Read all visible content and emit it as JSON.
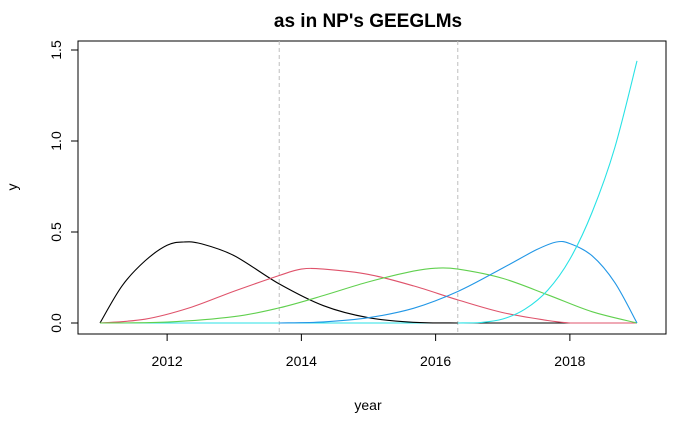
{
  "chart_data": {
    "type": "line",
    "title": "as in NP's GEEGLMs",
    "xlabel": "year",
    "ylabel": "y",
    "xlim": [
      2011.0,
      2019.0
    ],
    "ylim": [
      0.0,
      1.5
    ],
    "x_ticks": [
      2012,
      2014,
      2016,
      2018
    ],
    "x_tick_labels": [
      "2012",
      "2014",
      "2016",
      "2018"
    ],
    "y_ticks": [
      0.0,
      0.5,
      1.0,
      1.5
    ],
    "y_tick_labels": [
      "0.0",
      "0.5",
      "1.0",
      "1.5"
    ],
    "vlines": [
      2013.67,
      2016.33
    ],
    "vline_color": "#bebebe",
    "grid": false,
    "legend": "none",
    "series": [
      {
        "color": "#000000",
        "x": [
          2011.0,
          2011.33,
          2011.67,
          2012.0,
          2012.25,
          2012.5,
          2013.0,
          2013.67,
          2014.33,
          2015.0,
          2015.67,
          2016.33
        ],
        "y": [
          0.0,
          0.205,
          0.341,
          0.427,
          0.445,
          0.436,
          0.37,
          0.215,
          0.095,
          0.029,
          0.004,
          0.0
        ]
      },
      {
        "color": "#df536b",
        "x": [
          2011.0,
          2011.67,
          2012.33,
          2013.0,
          2013.67,
          2014.0,
          2014.33,
          2015.0,
          2015.67,
          2016.33,
          2017.0,
          2017.67,
          2018.0
        ],
        "y": [
          0.0,
          0.021,
          0.083,
          0.175,
          0.261,
          0.296,
          0.296,
          0.267,
          0.204,
          0.127,
          0.057,
          0.014,
          0.0
        ]
      },
      {
        "color": "#61d04f",
        "x": [
          2011.0,
          2012.0,
          2013.0,
          2013.67,
          2014.33,
          2015.0,
          2015.67,
          2016.0,
          2016.33,
          2017.0,
          2017.67,
          2018.33,
          2019.0
        ],
        "y": [
          0.0,
          0.005,
          0.035,
          0.083,
          0.151,
          0.226,
          0.285,
          0.301,
          0.296,
          0.245,
          0.155,
          0.062,
          0.0
        ]
      },
      {
        "color": "#2297e6",
        "x": [
          2013.67,
          2014.33,
          2015.0,
          2015.67,
          2016.33,
          2017.0,
          2017.5,
          2017.8,
          2018.0,
          2018.33,
          2018.67,
          2019.0
        ],
        "y": [
          0.0,
          0.006,
          0.029,
          0.081,
          0.173,
          0.302,
          0.402,
          0.445,
          0.436,
          0.37,
          0.222,
          0.0
        ]
      },
      {
        "color": "#28e2e5",
        "x": [
          2016.33,
          2016.67,
          2017.0,
          2017.33,
          2017.67,
          2018.0,
          2018.33,
          2018.67,
          2019.0
        ],
        "y": [
          0.0,
          0.003,
          0.022,
          0.076,
          0.18,
          0.351,
          0.607,
          0.964,
          1.44
        ]
      }
    ]
  }
}
